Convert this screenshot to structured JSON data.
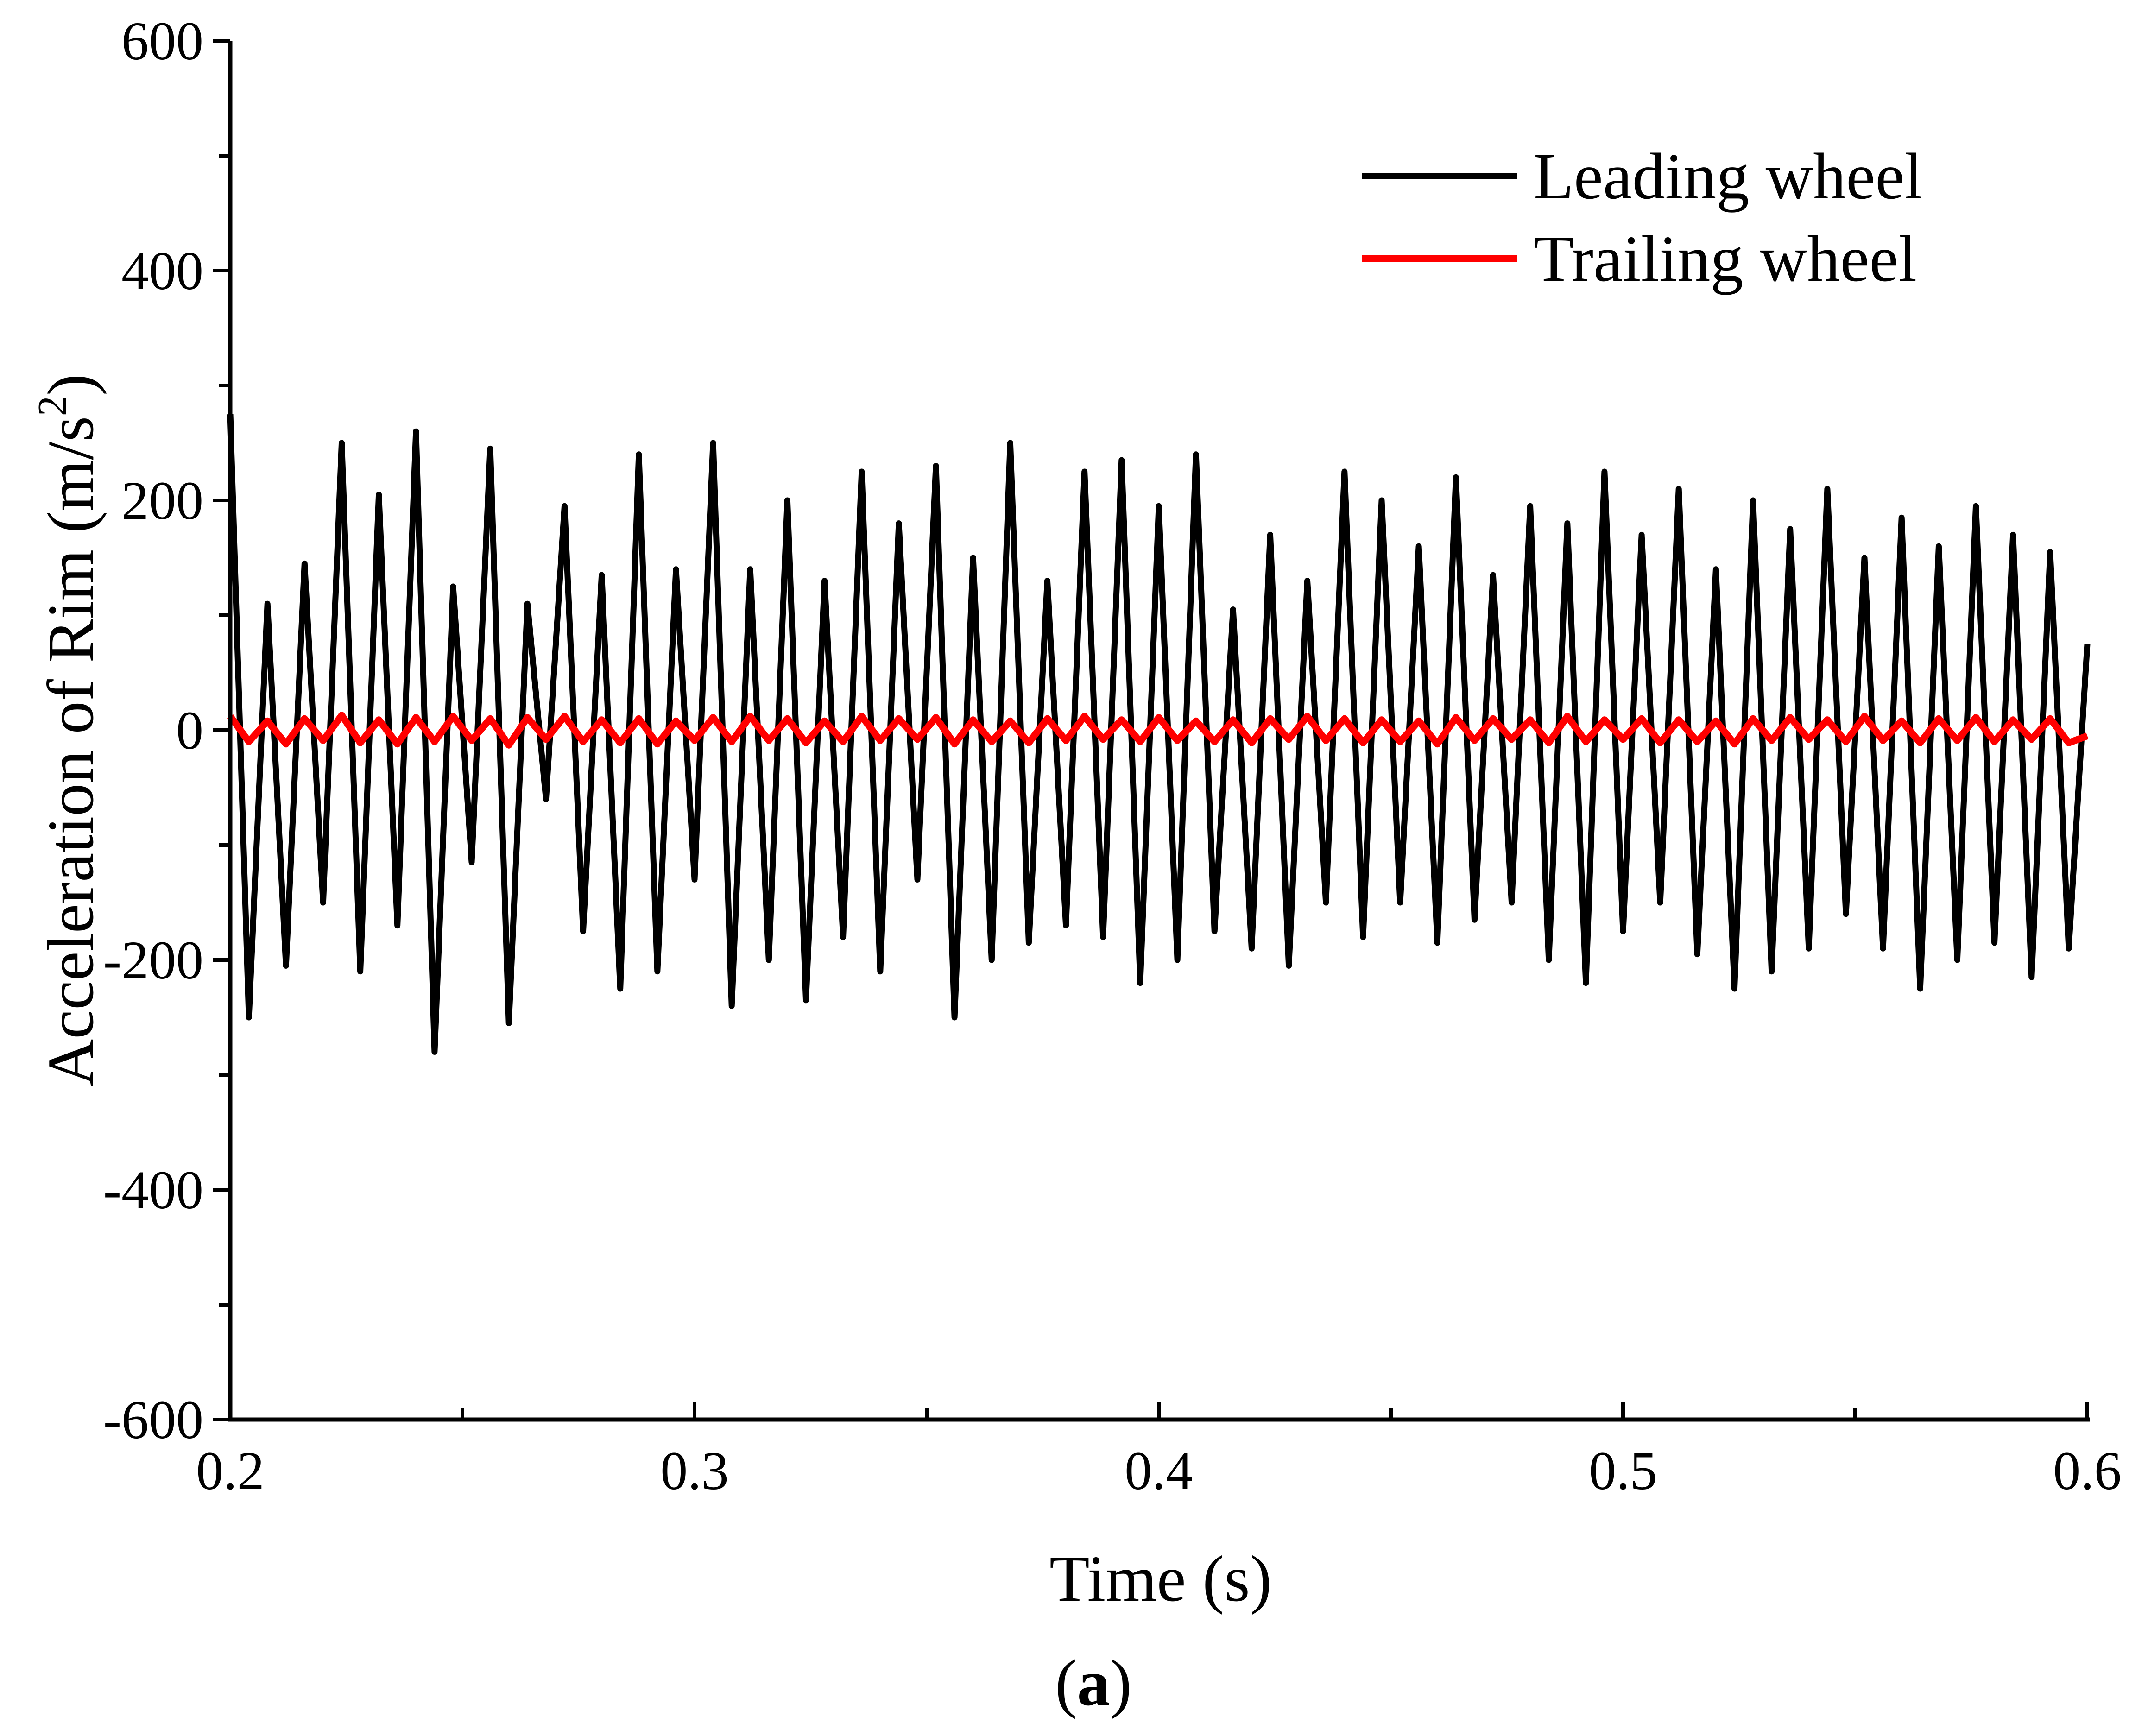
{
  "chart_data": {
    "type": "line",
    "xlabel": "Time (s)",
    "ylabel": {
      "main": "Acceleration of Rim (m/s",
      "superscript": "2",
      "close": ")"
    },
    "panel_label": {
      "open": "(",
      "letter": "a",
      "close": ")"
    },
    "xlim": [
      0.2,
      0.6
    ],
    "ylim": [
      -600,
      600
    ],
    "x_ticks": [
      0.2,
      0.3,
      0.4,
      0.5,
      0.6
    ],
    "x_tick_labels": [
      "0.2",
      "0.3",
      "0.4",
      "0.5",
      "0.6"
    ],
    "y_ticks": [
      -600,
      -400,
      -200,
      0,
      200,
      400,
      600
    ],
    "y_tick_labels": [
      "-600",
      "-400",
      "-200",
      "0",
      "200",
      "400",
      "600"
    ],
    "x_minor_step": 0.05,
    "y_minor_step": 100,
    "grid": false,
    "legend_position": "top-right",
    "series": [
      {
        "name": "Leading wheel",
        "color": "#000000",
        "x": [
          0.2,
          0.204,
          0.208,
          0.212,
          0.216,
          0.22,
          0.224,
          0.228,
          0.232,
          0.236,
          0.24,
          0.244,
          0.248,
          0.252,
          0.256,
          0.26,
          0.264,
          0.268,
          0.272,
          0.276,
          0.28,
          0.284,
          0.288,
          0.292,
          0.296,
          0.3,
          0.304,
          0.308,
          0.312,
          0.316,
          0.32,
          0.324,
          0.328,
          0.332,
          0.336,
          0.34,
          0.344,
          0.348,
          0.352,
          0.356,
          0.36,
          0.364,
          0.368,
          0.372,
          0.376,
          0.38,
          0.384,
          0.388,
          0.392,
          0.396,
          0.4,
          0.404,
          0.408,
          0.412,
          0.416,
          0.42,
          0.424,
          0.428,
          0.432,
          0.436,
          0.44,
          0.444,
          0.448,
          0.452,
          0.456,
          0.46,
          0.464,
          0.468,
          0.472,
          0.476,
          0.48,
          0.484,
          0.488,
          0.492,
          0.496,
          0.5,
          0.504,
          0.508,
          0.512,
          0.516,
          0.52,
          0.524,
          0.528,
          0.532,
          0.536,
          0.54,
          0.544,
          0.548,
          0.552,
          0.556,
          0.56,
          0.564,
          0.568,
          0.572,
          0.576,
          0.58,
          0.584,
          0.588,
          0.592,
          0.596,
          0.6
        ],
        "y": [
          275,
          -250,
          110,
          -205,
          145,
          -150,
          250,
          -210,
          205,
          -170,
          260,
          -280,
          125,
          -115,
          245,
          -255,
          110,
          -60,
          195,
          -175,
          135,
          -225,
          240,
          -210,
          140,
          -130,
          250,
          -240,
          140,
          -200,
          200,
          -235,
          130,
          -180,
          225,
          -210,
          180,
          -130,
          230,
          -250,
          150,
          -200,
          250,
          -185,
          130,
          -170,
          225,
          -180,
          235,
          -220,
          195,
          -200,
          240,
          -175,
          105,
          -190,
          170,
          -205,
          130,
          -150,
          225,
          -180,
          200,
          -150,
          160,
          -185,
          220,
          -165,
          135,
          -150,
          195,
          -200,
          180,
          -220,
          225,
          -175,
          170,
          -150,
          210,
          -195,
          140,
          -225,
          200,
          -210,
          175,
          -190,
          210,
          -160,
          150,
          -190,
          185,
          -225,
          160,
          -200,
          195,
          -185,
          170,
          -215,
          155,
          -190,
          75
        ]
      },
      {
        "name": "Trailing wheel",
        "color": "#ff0000",
        "x": [
          0.2,
          0.204,
          0.208,
          0.212,
          0.216,
          0.22,
          0.224,
          0.228,
          0.232,
          0.236,
          0.24,
          0.244,
          0.248,
          0.252,
          0.256,
          0.26,
          0.264,
          0.268,
          0.272,
          0.276,
          0.28,
          0.284,
          0.288,
          0.292,
          0.296,
          0.3,
          0.304,
          0.308,
          0.312,
          0.316,
          0.32,
          0.324,
          0.328,
          0.332,
          0.336,
          0.34,
          0.344,
          0.348,
          0.352,
          0.356,
          0.36,
          0.364,
          0.368,
          0.372,
          0.376,
          0.38,
          0.384,
          0.388,
          0.392,
          0.396,
          0.4,
          0.404,
          0.408,
          0.412,
          0.416,
          0.42,
          0.424,
          0.428,
          0.432,
          0.436,
          0.44,
          0.444,
          0.448,
          0.452,
          0.456,
          0.46,
          0.464,
          0.468,
          0.472,
          0.476,
          0.48,
          0.484,
          0.488,
          0.492,
          0.496,
          0.5,
          0.504,
          0.508,
          0.512,
          0.516,
          0.52,
          0.524,
          0.528,
          0.532,
          0.536,
          0.54,
          0.544,
          0.548,
          0.552,
          0.556,
          0.56,
          0.564,
          0.568,
          0.572,
          0.576,
          0.58,
          0.584,
          0.588,
          0.592,
          0.596,
          0.6
        ],
        "y": [
          12,
          -10,
          8,
          -12,
          10,
          -9,
          13,
          -11,
          9,
          -12,
          11,
          -10,
          12,
          -9,
          10,
          -13,
          11,
          -8,
          12,
          -10,
          9,
          -11,
          10,
          -12,
          8,
          -9,
          11,
          -10,
          12,
          -9,
          10,
          -11,
          8,
          -10,
          12,
          -9,
          10,
          -8,
          11,
          -12,
          9,
          -10,
          8,
          -11,
          10,
          -9,
          12,
          -8,
          9,
          -10,
          11,
          -9,
          8,
          -10,
          9,
          -11,
          10,
          -8,
          12,
          -9,
          10,
          -11,
          9,
          -10,
          8,
          -12,
          11,
          -9,
          10,
          -8,
          9,
          -11,
          12,
          -10,
          9,
          -8,
          10,
          -11,
          9,
          -10,
          8,
          -12,
          10,
          -9,
          11,
          -8,
          9,
          -10,
          12,
          -9,
          8,
          -11,
          10,
          -9,
          11,
          -10,
          9,
          -8,
          10,
          -11,
          -5
        ]
      }
    ]
  }
}
